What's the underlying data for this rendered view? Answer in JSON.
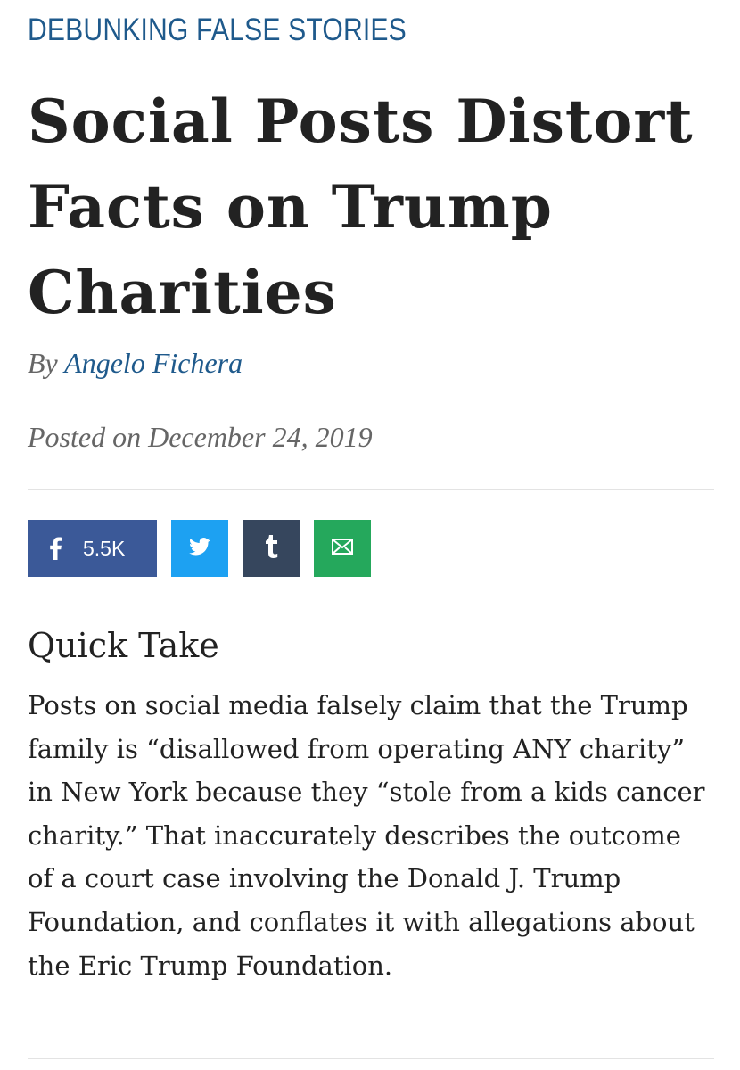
{
  "article": {
    "kicker": "DEBUNKING FALSE STORIES",
    "headline": "Social Posts Distort Facts on Trump Charities",
    "byline_prefix": "By",
    "author": "Angelo Fichera",
    "posted": "Posted on December 24, 2019"
  },
  "share": {
    "facebook_count": "5.5K",
    "icons": [
      "facebook-icon",
      "twitter-icon",
      "tumblr-icon",
      "email-icon"
    ],
    "colors": {
      "facebook": "#3b5998",
      "twitter": "#1da1f2",
      "tumblr": "#36465d",
      "email": "#25a85c"
    }
  },
  "quick_take": {
    "heading": "Quick Take",
    "body": "Posts on social media falsely claim that the Trump family is “disallowed from operating ANY charity” in New York because they “stole from a kids cancer charity.” That inaccurately describes the outcome of a court case involving the Donald J. Trump Foundation, and conflates it with allegations about the Eric Trump Foundation."
  },
  "colors": {
    "accent": "#1f5a8c",
    "text": "#222222",
    "meta": "#666666"
  }
}
